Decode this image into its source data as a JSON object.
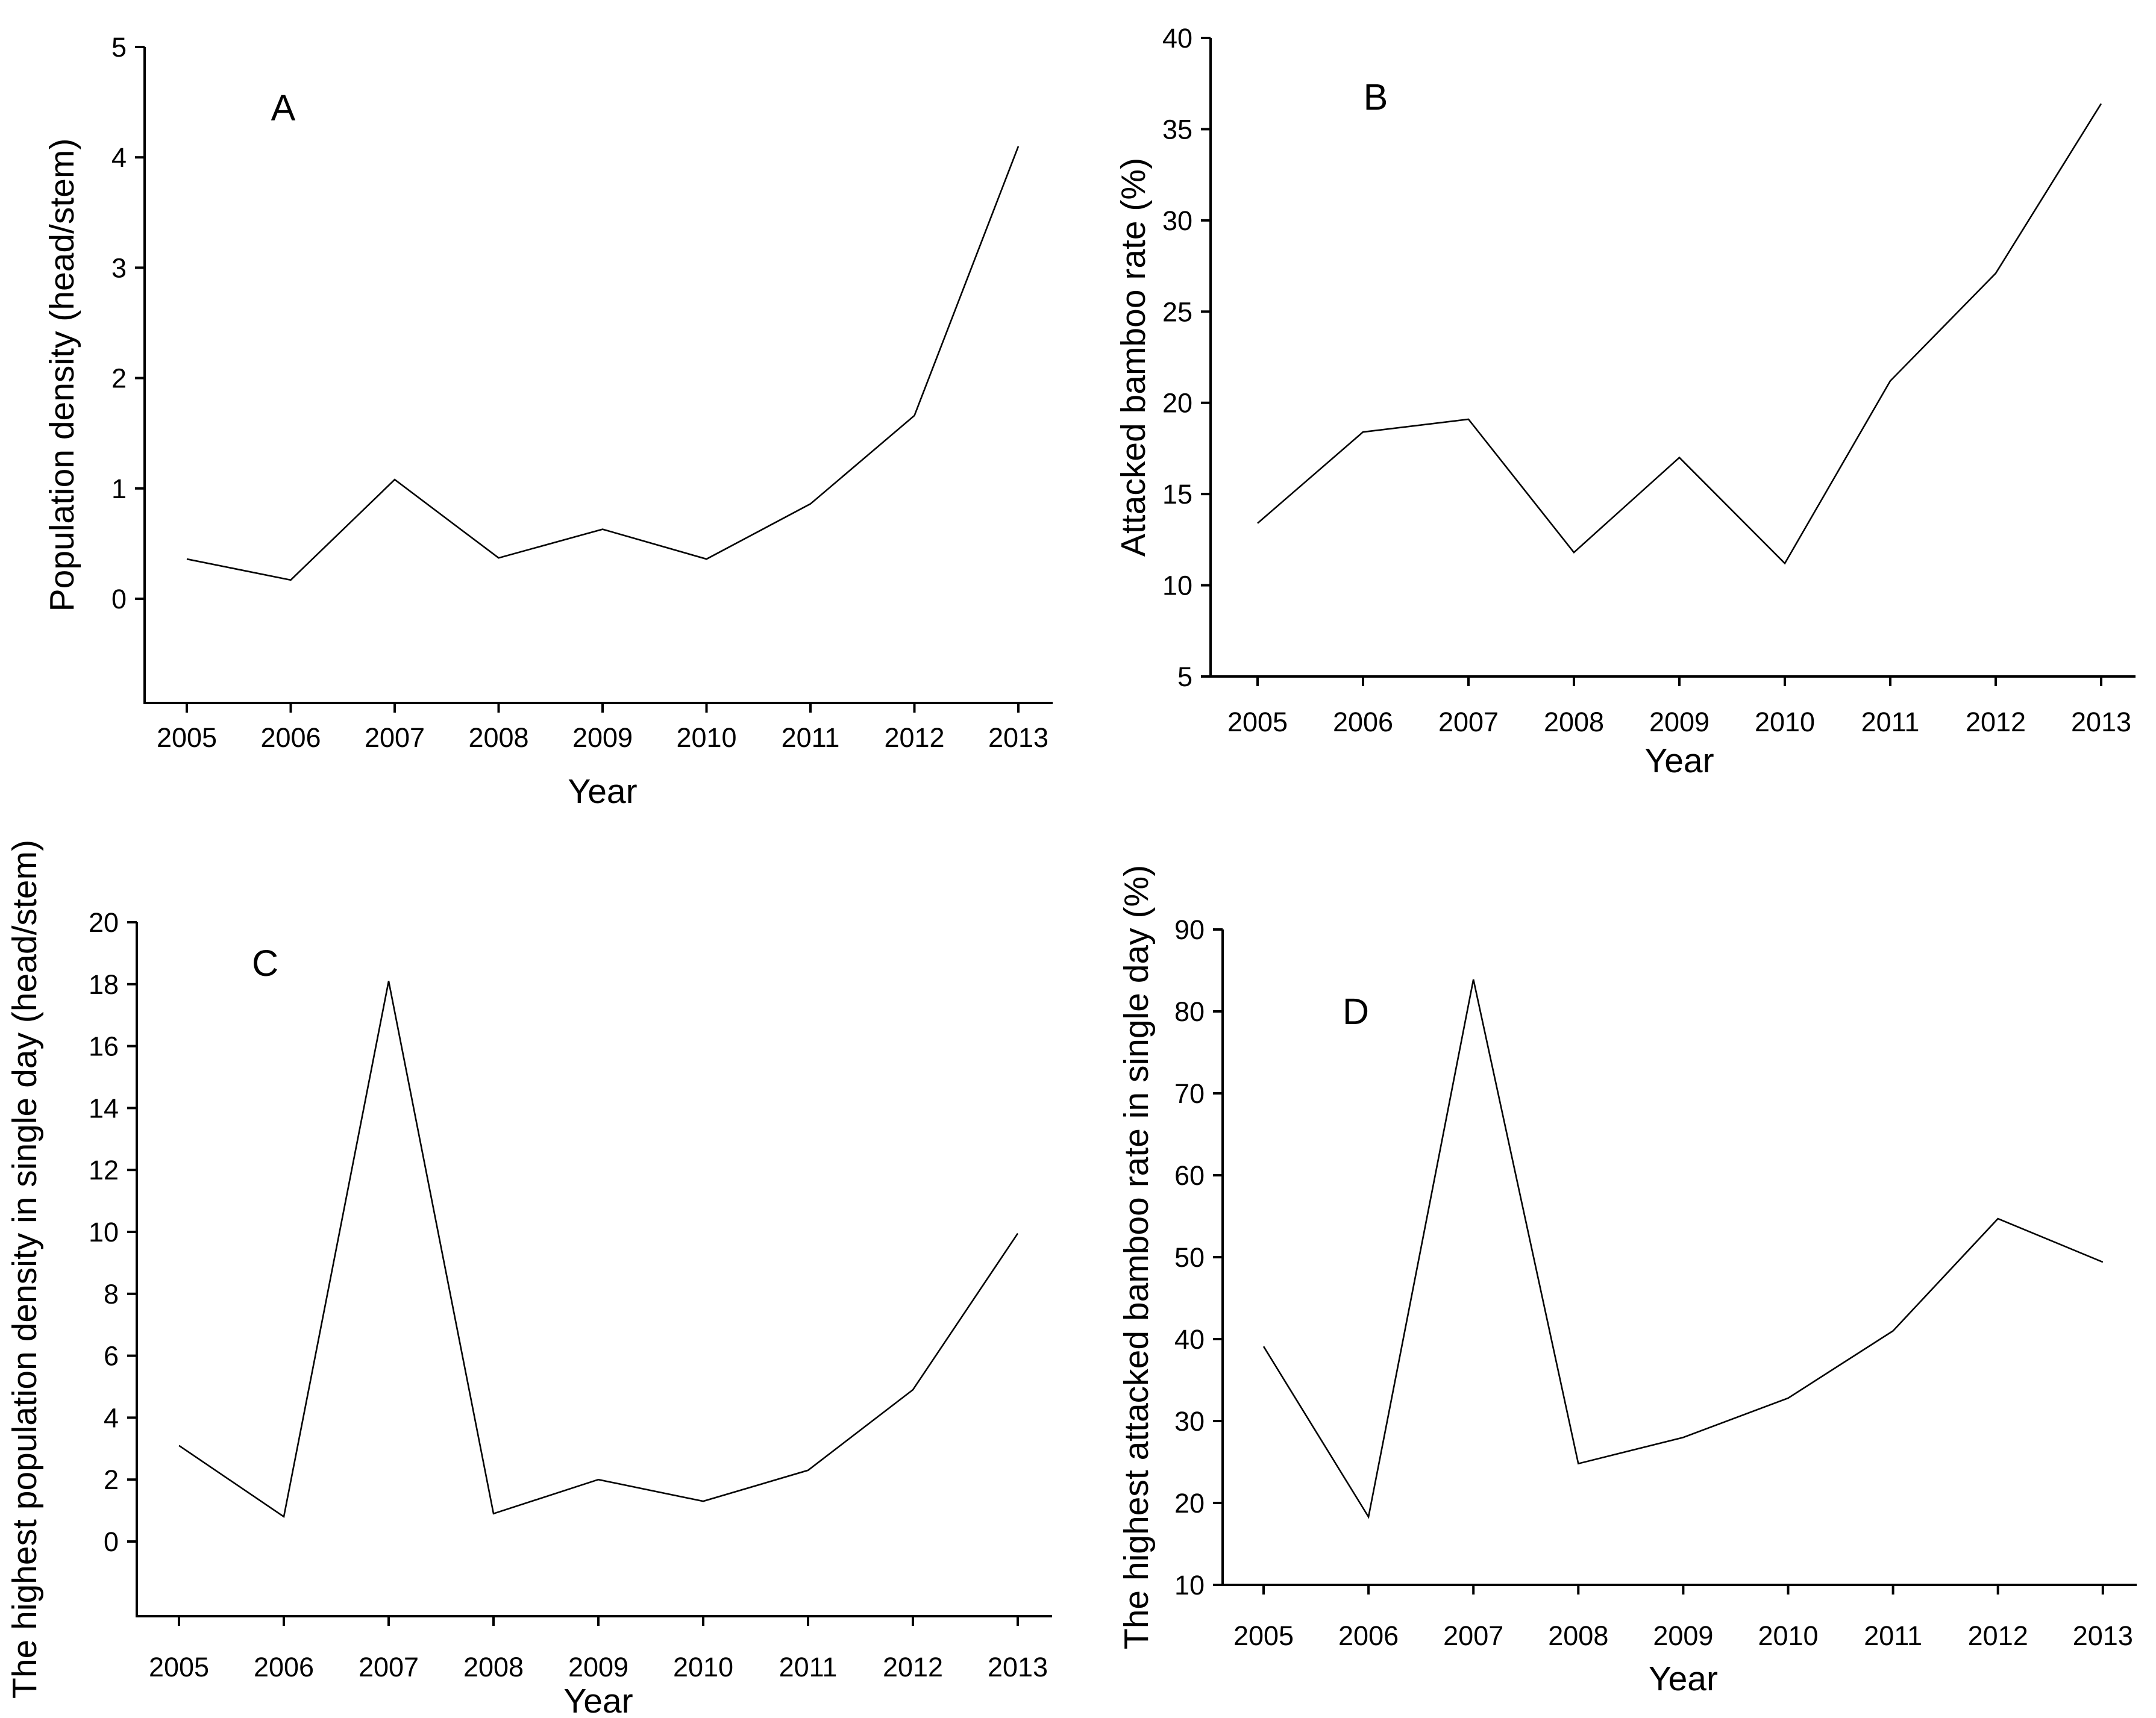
{
  "figure": {
    "background": "#ffffff",
    "line_color": "#000000",
    "text_color": "#000000",
    "description": "Four-panel line figure (A, B, C, D), annual values 2005-2013"
  },
  "chart_data": [
    {
      "panel_label": "A",
      "type": "line",
      "title": "",
      "xlabel": "Year",
      "ylabel": "Population density (head/stem)",
      "x": [
        2005,
        2006,
        2007,
        2008,
        2009,
        2010,
        2011,
        2012,
        2013
      ],
      "values": [
        0.36,
        0.17,
        1.08,
        0.37,
        0.63,
        0.36,
        0.86,
        1.66,
        4.1
      ],
      "yticks": [
        0,
        1,
        2,
        3,
        4,
        5
      ],
      "ylim": [
        -0.95,
        5
      ],
      "xlim": [
        2004.6,
        2013.35
      ],
      "grid": false,
      "legend": false,
      "marker": "none"
    },
    {
      "panel_label": "B",
      "type": "line",
      "title": "",
      "xlabel": "Year",
      "ylabel": "Attacked bamboo rate (%)",
      "x": [
        2005,
        2006,
        2007,
        2008,
        2009,
        2010,
        2011,
        2012,
        2013
      ],
      "values": [
        13.4,
        18.4,
        19.1,
        11.8,
        17.0,
        11.2,
        21.2,
        27.1,
        36.4
      ],
      "yticks": [
        5,
        10,
        15,
        20,
        25,
        30,
        35,
        40
      ],
      "ylim": [
        5,
        40
      ],
      "xlim": [
        2004.6,
        2013.35
      ],
      "grid": false,
      "legend": false,
      "marker": "none"
    },
    {
      "panel_label": "C",
      "type": "line",
      "title": "",
      "xlabel": "Year",
      "ylabel": "The highest population density in single day (head/stem)",
      "x": [
        2005,
        2006,
        2007,
        2008,
        2009,
        2010,
        2011,
        2012,
        2013
      ],
      "values": [
        3.1,
        0.8,
        18.1,
        0.9,
        2.0,
        1.3,
        2.3,
        4.9,
        9.95
      ],
      "yticks": [
        0,
        2,
        4,
        6,
        8,
        10,
        12,
        14,
        16,
        18,
        20
      ],
      "ylim": [
        -2.5,
        20
      ],
      "xlim": [
        2004.6,
        2013.35
      ],
      "grid": false,
      "legend": false,
      "marker": "none"
    },
    {
      "panel_label": "D",
      "type": "line",
      "title": "",
      "xlabel": "Year",
      "ylabel": "The highest attacked bamboo rate in single day (%)",
      "x": [
        2005,
        2006,
        2007,
        2008,
        2009,
        2010,
        2011,
        2012,
        2013
      ],
      "values": [
        39.1,
        18.3,
        83.9,
        24.8,
        28.0,
        32.8,
        41.0,
        54.7,
        49.4
      ],
      "yticks": [
        10,
        20,
        30,
        40,
        50,
        60,
        70,
        80,
        90
      ],
      "ylim": [
        10,
        90
      ],
      "xlim": [
        2004.6,
        2013.35
      ],
      "grid": false,
      "legend": false,
      "marker": "none"
    }
  ]
}
